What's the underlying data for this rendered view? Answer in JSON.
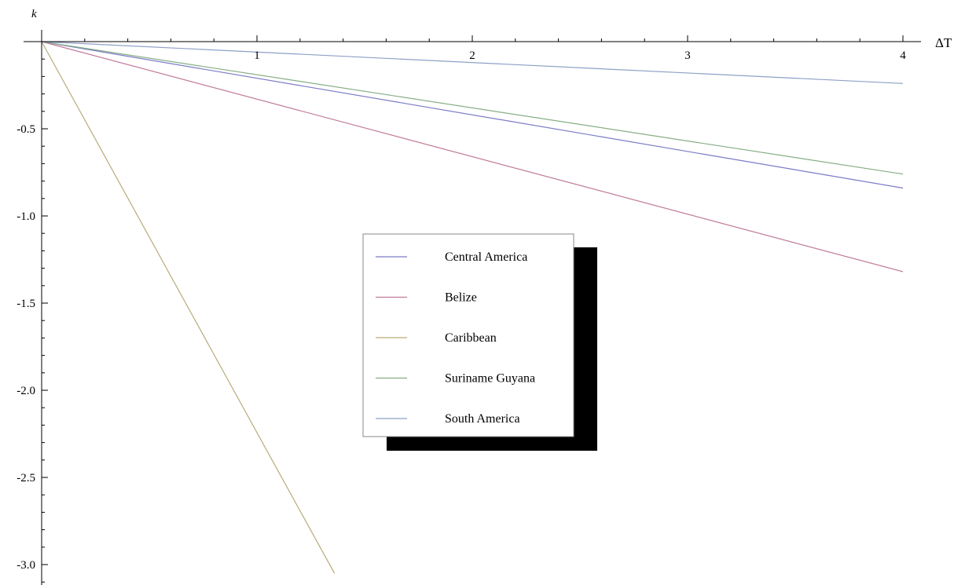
{
  "chart_data": {
    "type": "line",
    "xlabel": "ΔT",
    "ylabel": "k",
    "xlim": [
      0,
      4
    ],
    "ylim": [
      -3.05,
      0
    ],
    "x_ticks": [
      1,
      2,
      3,
      4
    ],
    "x_tick_labels": [
      "1",
      "2",
      "3",
      "4"
    ],
    "y_ticks": [
      -0.5,
      -1.0,
      -1.5,
      -2.0,
      -2.5,
      -3.0
    ],
    "y_tick_labels": [
      "-0.5",
      "-1.0",
      "-1.5",
      "-2.0",
      "-2.5",
      "-3.0"
    ],
    "grid": false,
    "legend_position": "center",
    "series": [
      {
        "name": "Central America",
        "color": "#7a7ac8",
        "x": [
          0,
          4
        ],
        "y": [
          0,
          -0.84
        ]
      },
      {
        "name": "Belize",
        "color": "#c07a9a",
        "x": [
          0,
          4
        ],
        "y": [
          0,
          -1.32
        ]
      },
      {
        "name": "Caribbean",
        "color": "#b8ac78",
        "x": [
          0,
          1.36
        ],
        "y": [
          0,
          -3.05
        ]
      },
      {
        "name": "Suriname Guyana",
        "color": "#86ad86",
        "x": [
          0,
          4
        ],
        "y": [
          0,
          -0.76
        ]
      },
      {
        "name": "South America",
        "color": "#8ea0c8",
        "x": [
          0,
          4
        ],
        "y": [
          0,
          -0.24
        ]
      }
    ]
  }
}
